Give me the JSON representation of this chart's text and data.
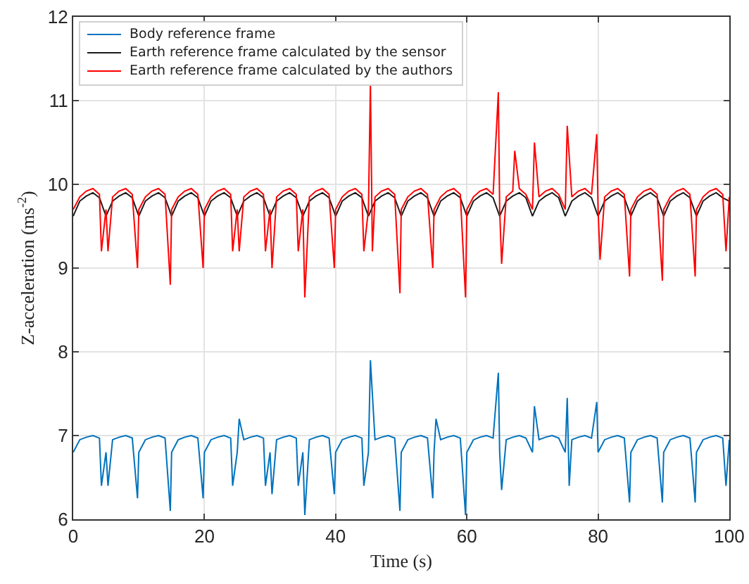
{
  "chart_data": {
    "type": "line",
    "xlabel": "Time (s)",
    "ylabel": "Z-acceleration (ms$^{-2}$)",
    "xlim": [
      0,
      100
    ],
    "xticks": [
      0,
      20,
      40,
      60,
      80,
      100
    ],
    "ylim": [
      6,
      12
    ],
    "yticks": [
      6,
      7,
      8,
      9,
      10,
      11,
      12
    ],
    "grid": true,
    "legend": "top left",
    "line_style": "solid",
    "marker": "none",
    "series": [
      {
        "name": "Body reference frame",
        "color": "#0072bd",
        "x": [
          0,
          1,
          2,
          3,
          4,
          4.3,
          5,
          5.3,
          6,
          7,
          8,
          9,
          9.8,
          10,
          11,
          12,
          13,
          14,
          14.8,
          15,
          16,
          17,
          18,
          19,
          19.8,
          20,
          21,
          22,
          23,
          24,
          24.3,
          25,
          25.3,
          26,
          27,
          28,
          29,
          29.3,
          30,
          30.3,
          31,
          32,
          33,
          34,
          34.3,
          35,
          35.3,
          36,
          37,
          38,
          39,
          39.8,
          40,
          41,
          42,
          43,
          44,
          44.3,
          45,
          45.3,
          46,
          47,
          48,
          49,
          49.8,
          50,
          51,
          52,
          53,
          54,
          54.8,
          55,
          55.3,
          56,
          57,
          58,
          59,
          59.8,
          60,
          61,
          62,
          63,
          64,
          64.8,
          65,
          65.3,
          66,
          67,
          68,
          69,
          70,
          70.3,
          71,
          72,
          73,
          74,
          75,
          75.3,
          75.6,
          76,
          77,
          78,
          79,
          79.8,
          80,
          81,
          82,
          83,
          84,
          84.8,
          85,
          86,
          87,
          88,
          89,
          89.8,
          90,
          91,
          92,
          93,
          94,
          94.8,
          95,
          96,
          97,
          98,
          99,
          99.5,
          100
        ],
        "values": [
          6.8,
          6.95,
          6.98,
          7.0,
          6.97,
          6.4,
          6.8,
          6.4,
          6.95,
          6.98,
          7.0,
          6.97,
          6.25,
          6.8,
          6.95,
          6.98,
          7.0,
          6.97,
          6.1,
          6.8,
          6.95,
          6.98,
          7.0,
          6.97,
          6.25,
          6.8,
          6.95,
          6.98,
          7.0,
          6.97,
          6.4,
          6.8,
          7.2,
          6.95,
          6.98,
          7.0,
          6.97,
          6.4,
          6.8,
          6.3,
          6.95,
          6.98,
          7.0,
          6.97,
          6.4,
          6.8,
          6.05,
          6.95,
          6.98,
          7.0,
          6.97,
          6.3,
          6.8,
          6.95,
          6.98,
          7.0,
          6.97,
          6.4,
          6.8,
          7.9,
          6.95,
          6.98,
          7.0,
          6.97,
          6.1,
          6.8,
          6.95,
          6.98,
          7.0,
          6.97,
          6.25,
          6.8,
          7.2,
          6.95,
          6.98,
          7.0,
          6.97,
          6.05,
          6.8,
          6.95,
          6.98,
          7.0,
          6.97,
          7.75,
          6.8,
          6.35,
          6.95,
          6.98,
          7.0,
          6.97,
          6.8,
          7.35,
          6.95,
          6.98,
          7.0,
          6.97,
          6.8,
          7.45,
          6.4,
          6.95,
          6.98,
          7.0,
          6.97,
          7.4,
          6.8,
          6.95,
          6.98,
          7.0,
          6.97,
          6.2,
          6.8,
          6.95,
          6.98,
          7.0,
          6.97,
          6.2,
          6.8,
          6.95,
          6.98,
          7.0,
          6.97,
          6.2,
          6.8,
          6.95,
          6.98,
          7.0,
          6.97,
          6.4,
          6.95
        ]
      },
      {
        "name": "Earth reference frame calculated by the sensor",
        "color": "#1a1a1a",
        "x": [
          0,
          1,
          2,
          3,
          4,
          5,
          6,
          7,
          8,
          9,
          10,
          11,
          12,
          13,
          14,
          15,
          16,
          17,
          18,
          19,
          20,
          21,
          22,
          23,
          24,
          25,
          26,
          27,
          28,
          29,
          30,
          31,
          32,
          33,
          34,
          35,
          36,
          37,
          38,
          39,
          40,
          41,
          42,
          43,
          44,
          45,
          46,
          47,
          48,
          49,
          50,
          51,
          52,
          53,
          54,
          55,
          56,
          57,
          58,
          59,
          60,
          61,
          62,
          63,
          64,
          65,
          66,
          67,
          68,
          69,
          70,
          71,
          72,
          73,
          74,
          75,
          76,
          77,
          78,
          79,
          80,
          81,
          82,
          83,
          84,
          85,
          86,
          87,
          88,
          89,
          90,
          91,
          92,
          93,
          94,
          95,
          96,
          97,
          98,
          99,
          100
        ],
        "values": [
          9.62,
          9.8,
          9.86,
          9.9,
          9.84,
          9.62,
          9.8,
          9.86,
          9.9,
          9.84,
          9.62,
          9.8,
          9.86,
          9.9,
          9.84,
          9.62,
          9.8,
          9.86,
          9.9,
          9.84,
          9.62,
          9.8,
          9.86,
          9.9,
          9.84,
          9.62,
          9.8,
          9.86,
          9.9,
          9.84,
          9.62,
          9.8,
          9.86,
          9.9,
          9.84,
          9.62,
          9.8,
          9.86,
          9.9,
          9.84,
          9.62,
          9.8,
          9.86,
          9.9,
          9.84,
          9.62,
          9.8,
          9.86,
          9.9,
          9.84,
          9.62,
          9.8,
          9.86,
          9.9,
          9.84,
          9.62,
          9.8,
          9.86,
          9.9,
          9.84,
          9.62,
          9.8,
          9.86,
          9.9,
          9.84,
          9.62,
          9.8,
          9.86,
          9.9,
          9.84,
          9.62,
          9.8,
          9.86,
          9.9,
          9.84,
          9.62,
          9.8,
          9.86,
          9.9,
          9.84,
          9.62,
          9.8,
          9.86,
          9.9,
          9.84,
          9.62,
          9.8,
          9.86,
          9.9,
          9.84,
          9.62,
          9.8,
          9.86,
          9.9,
          9.84,
          9.62,
          9.8,
          9.86,
          9.9,
          9.84,
          9.8
        ]
      },
      {
        "name": "Earth reference frame calculated by the authors",
        "color": "#ff0000",
        "x": [
          0,
          1,
          2,
          3,
          4,
          4.3,
          5,
          5.3,
          6,
          7,
          8,
          9,
          9.8,
          10,
          11,
          12,
          13,
          14,
          14.8,
          15,
          16,
          17,
          18,
          19,
          19.8,
          20,
          21,
          22,
          23,
          24,
          24.3,
          25,
          25.3,
          26,
          27,
          28,
          29,
          29.3,
          30,
          30.3,
          31,
          32,
          33,
          34,
          34.3,
          35,
          35.3,
          36,
          37,
          38,
          39,
          39.8,
          40,
          41,
          42,
          43,
          44,
          44.3,
          45,
          45.3,
          45.6,
          46,
          47,
          48,
          49,
          49.8,
          50,
          51,
          52,
          53,
          54,
          54.8,
          55,
          56,
          57,
          58,
          59,
          59.8,
          60,
          61,
          62,
          63,
          64,
          64.8,
          65,
          65.3,
          66,
          67,
          67.3,
          68,
          69,
          70,
          70.3,
          71,
          72,
          73,
          74,
          75,
          75.3,
          76,
          77,
          78,
          79,
          79.8,
          80,
          80.3,
          81,
          82,
          83,
          84,
          84.8,
          85,
          86,
          87,
          88,
          89,
          89.8,
          90,
          91,
          92,
          93,
          94,
          94.8,
          95,
          96,
          97,
          98,
          99,
          99.5,
          100
        ],
        "values": [
          9.7,
          9.85,
          9.92,
          9.95,
          9.88,
          9.2,
          9.7,
          9.2,
          9.85,
          9.92,
          9.95,
          9.88,
          9.0,
          9.7,
          9.85,
          9.92,
          9.95,
          9.88,
          8.8,
          9.7,
          9.85,
          9.92,
          9.95,
          9.88,
          9.0,
          9.7,
          9.85,
          9.92,
          9.95,
          9.88,
          9.2,
          9.7,
          9.2,
          9.85,
          9.92,
          9.95,
          9.88,
          9.2,
          9.7,
          9.0,
          9.85,
          9.92,
          9.95,
          9.88,
          9.2,
          9.7,
          8.65,
          9.85,
          9.92,
          9.95,
          9.88,
          9.0,
          9.7,
          9.85,
          9.92,
          9.95,
          9.88,
          9.2,
          9.7,
          11.2,
          9.2,
          9.85,
          9.92,
          9.95,
          9.88,
          8.7,
          9.7,
          9.85,
          9.92,
          9.95,
          9.88,
          9.0,
          9.7,
          9.85,
          9.92,
          9.95,
          9.88,
          8.65,
          9.7,
          9.85,
          9.92,
          9.95,
          9.88,
          11.1,
          9.7,
          9.05,
          9.85,
          9.92,
          10.4,
          9.95,
          9.88,
          9.7,
          10.5,
          9.85,
          9.92,
          9.95,
          9.88,
          9.7,
          10.7,
          9.85,
          9.92,
          9.95,
          9.88,
          10.6,
          9.7,
          9.1,
          9.85,
          9.92,
          9.95,
          9.88,
          8.9,
          9.7,
          9.85,
          9.92,
          9.95,
          9.88,
          8.85,
          9.7,
          9.85,
          9.92,
          9.95,
          9.88,
          8.9,
          9.7,
          9.85,
          9.92,
          9.95,
          9.88,
          9.2,
          9.85
        ]
      }
    ]
  }
}
